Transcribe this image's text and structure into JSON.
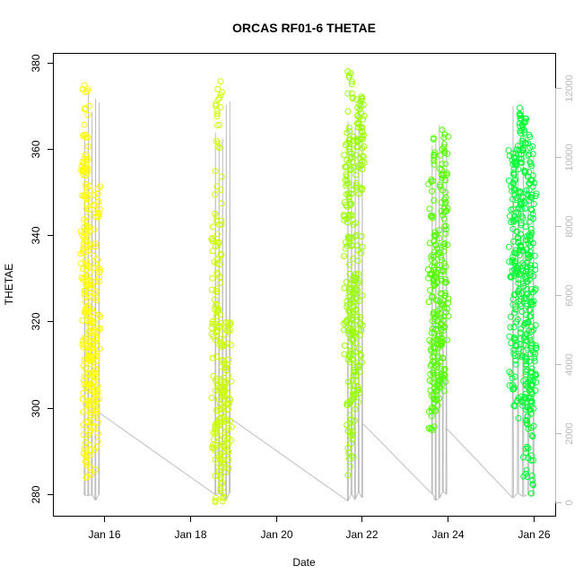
{
  "chart_data": {
    "type": "scatter",
    "title": "ORCAS RF01-6 THETAE",
    "xlabel": "Date",
    "ylabel": "THETAE",
    "xlim": [
      "2016-01-14T20:00",
      "2016-01-26T12:00"
    ],
    "ylim": [
      275,
      382
    ],
    "y2lim": [
      -400,
      13000
    ],
    "x_ticks": [
      {
        "date": "2016-01-16T00:00",
        "label": "Jan 16"
      },
      {
        "date": "2016-01-18T00:00",
        "label": "Jan 18"
      },
      {
        "date": "2016-01-20T00:00",
        "label": "Jan 20"
      },
      {
        "date": "2016-01-22T00:00",
        "label": "Jan 22"
      },
      {
        "date": "2016-01-24T00:00",
        "label": "Jan 24"
      },
      {
        "date": "2016-01-26T00:00",
        "label": "Jan 26"
      }
    ],
    "y_ticks": [
      280,
      300,
      320,
      340,
      360,
      380
    ],
    "y2_ticks": [
      0,
      2000,
      4000,
      6000,
      8000,
      10000,
      12000
    ],
    "altitude_color": "#bebebe",
    "series": [
      {
        "color": "#ffff00",
        "start": "2016-01-15T13:00",
        "end": "2016-01-15T21:00",
        "thetae_range": [
          283,
          376
        ],
        "altitude_range": [
          0,
          11900
        ],
        "profiles": [
          {
            "time": "2016-01-15T13:00",
            "min": 315,
            "max": 375
          },
          {
            "time": "2016-01-15T14:00",
            "min": 285,
            "max": 376
          },
          {
            "time": "2016-01-15T15:30",
            "min": 283,
            "max": 342
          },
          {
            "time": "2016-01-15T17:00",
            "min": 290,
            "max": 330
          },
          {
            "time": "2016-01-15T18:30",
            "min": 298,
            "max": 320
          },
          {
            "time": "2016-01-15T20:00",
            "min": 285,
            "max": 352
          }
        ]
      },
      {
        "color": "#ccff00",
        "start": "2016-01-18T14:00",
        "end": "2016-01-18T22:00",
        "thetae_range": [
          277,
          376
        ],
        "altitude_range": [
          0,
          11900
        ],
        "profiles": [
          {
            "time": "2016-01-18T14:00",
            "min": 290,
            "max": 345
          },
          {
            "time": "2016-01-18T16:00",
            "min": 277,
            "max": 376
          },
          {
            "time": "2016-01-18T18:00",
            "min": 278,
            "max": 318
          },
          {
            "time": "2016-01-18T20:00",
            "min": 285,
            "max": 312
          },
          {
            "time": "2016-01-18T21:30",
            "min": 287,
            "max": 321
          }
        ]
      },
      {
        "color": "#99ff00",
        "start": "2016-01-21T16:00",
        "end": "2016-01-22T00:00",
        "thetae_range": [
          283,
          378
        ],
        "altitude_range": [
          0,
          12000
        ],
        "profiles": [
          {
            "time": "2016-01-21T16:00",
            "min": 310,
            "max": 365
          },
          {
            "time": "2016-01-21T17:30",
            "min": 283,
            "max": 378
          },
          {
            "time": "2016-01-21T19:00",
            "min": 288,
            "max": 340
          },
          {
            "time": "2016-01-21T21:00",
            "min": 300,
            "max": 330
          },
          {
            "time": "2016-01-21T22:30",
            "min": 308,
            "max": 374
          },
          {
            "time": "2016-01-21T23:30",
            "min": 356,
            "max": 372
          }
        ]
      },
      {
        "color": "#55ff00",
        "start": "2016-01-23T15:00",
        "end": "2016-01-23T23:00",
        "thetae_range": [
          294,
          365
        ],
        "altitude_range": [
          0,
          11800
        ],
        "profiles": [
          {
            "time": "2016-01-23T15:00",
            "min": 294,
            "max": 364
          },
          {
            "time": "2016-01-23T16:30",
            "min": 298,
            "max": 345
          },
          {
            "time": "2016-01-23T18:00",
            "min": 300,
            "max": 340
          },
          {
            "time": "2016-01-23T19:30",
            "min": 305,
            "max": 330
          },
          {
            "time": "2016-01-23T21:00",
            "min": 302,
            "max": 362
          },
          {
            "time": "2016-01-23T22:30",
            "min": 315,
            "max": 365
          }
        ]
      },
      {
        "color": "#00ff33",
        "start": "2016-01-25T12:00",
        "end": "2016-01-25T23:30",
        "thetae_range": [
          280,
          370
        ],
        "altitude_range": [
          0,
          11700
        ],
        "profiles": [
          {
            "time": "2016-01-25T12:00",
            "min": 300,
            "max": 361
          },
          {
            "time": "2016-01-25T14:00",
            "min": 296,
            "max": 358
          },
          {
            "time": "2016-01-25T16:00",
            "min": 310,
            "max": 368
          },
          {
            "time": "2016-01-25T18:00",
            "min": 300,
            "max": 370
          },
          {
            "time": "2016-01-25T20:00",
            "min": 283,
            "max": 366
          },
          {
            "time": "2016-01-25T22:00",
            "min": 280,
            "max": 365
          },
          {
            "time": "2016-01-25T23:30",
            "min": 296,
            "max": 358
          }
        ]
      }
    ]
  }
}
